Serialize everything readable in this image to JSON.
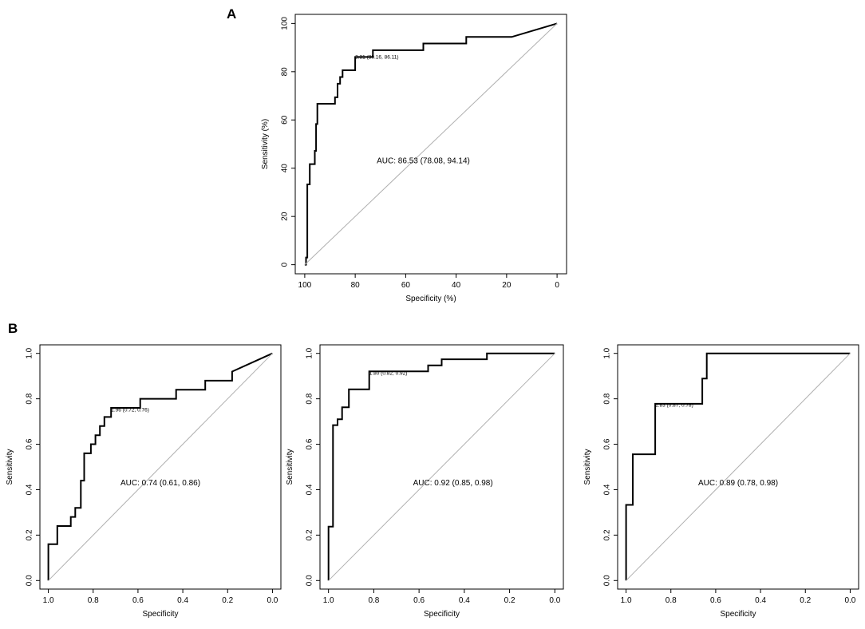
{
  "panels": {
    "a": "A",
    "b": "B"
  },
  "chart_data": [
    {
      "id": "roc-a",
      "type": "line",
      "title": "",
      "xlabel": "Specificity (%)",
      "ylabel": "Sensitivity (%)",
      "xlim": [
        100,
        0
      ],
      "ylim": [
        0,
        100
      ],
      "xticks": [
        100,
        80,
        60,
        40,
        20,
        0
      ],
      "yticks": [
        0,
        20,
        40,
        60,
        80,
        100
      ],
      "xtick_labels": [
        "100",
        "80",
        "60",
        "40",
        "20",
        "0"
      ],
      "ytick_labels": [
        "0",
        "20",
        "40",
        "60",
        "80",
        "100"
      ],
      "series": [
        {
          "name": "ROC",
          "x": [
            100,
            99.5,
            99.5,
            99,
            99,
            98,
            98,
            96,
            96,
            95.5,
            95.5,
            95,
            95,
            88,
            88,
            87,
            87,
            86,
            86,
            85,
            85,
            80,
            80,
            73,
            73,
            53,
            53,
            36,
            36,
            18,
            0
          ],
          "y": [
            0,
            0,
            3,
            3,
            33.3,
            33.3,
            41.7,
            41.7,
            47.2,
            47.2,
            58.3,
            58.3,
            66.7,
            66.7,
            69.4,
            69.4,
            75,
            75,
            77.8,
            77.8,
            80.6,
            80.6,
            86.1,
            86.1,
            88.9,
            88.9,
            91.7,
            91.7,
            94.4,
            94.4,
            100
          ]
        },
        {
          "name": "chance",
          "x": [
            100,
            0
          ],
          "y": [
            0,
            100
          ]
        }
      ],
      "annotations": [
        {
          "text": "AUC: 86.53 (78.08, 94.14)",
          "x": 53,
          "y": 42
        },
        {
          "text": "3.31 (80.16, 86.11)",
          "x": 80,
          "y": 85.4
        }
      ]
    },
    {
      "id": "roc-b1",
      "type": "line",
      "title": "",
      "xlabel": "Specificity",
      "ylabel": "Sensitivity",
      "xlim": [
        1.0,
        0.0
      ],
      "ylim": [
        0,
        1.0
      ],
      "xticks": [
        1.0,
        0.8,
        0.6,
        0.4,
        0.2,
        0.0
      ],
      "yticks": [
        0.0,
        0.2,
        0.4,
        0.6,
        0.8,
        1.0
      ],
      "xtick_labels": [
        "1.0",
        "0.8",
        "0.6",
        "0.4",
        "0.2",
        "0.0"
      ],
      "ytick_labels": [
        "0.0",
        "0.2",
        "0.4",
        "0.6",
        "0.8",
        "1.0"
      ],
      "series": [
        {
          "name": "ROC",
          "x": [
            1.0,
            1.0,
            0.98,
            0.98,
            0.96,
            0.96,
            0.9,
            0.9,
            0.88,
            0.88,
            0.87,
            0.87,
            0.855,
            0.855,
            0.84,
            0.84,
            0.81,
            0.81,
            0.79,
            0.79,
            0.77,
            0.77,
            0.75,
            0.75,
            0.72,
            0.72,
            0.59,
            0.59,
            0.43,
            0.43,
            0.3,
            0.3,
            0.18,
            0.18,
            0.0
          ],
          "y": [
            0,
            0.16,
            0.16,
            0.16,
            0.16,
            0.24,
            0.24,
            0.28,
            0.28,
            0.32,
            0.32,
            0.32,
            0.32,
            0.44,
            0.44,
            0.56,
            0.56,
            0.6,
            0.6,
            0.64,
            0.64,
            0.68,
            0.68,
            0.72,
            0.72,
            0.76,
            0.76,
            0.8,
            0.8,
            0.84,
            0.84,
            0.88,
            0.88,
            0.92,
            1.0
          ]
        },
        {
          "name": "chance",
          "x": [
            1.0,
            0.0
          ],
          "y": [
            0.0,
            1.0
          ]
        }
      ],
      "annotations": [
        {
          "text": "AUC: 0.74 (0.61, 0.86)",
          "x": 0.5,
          "y": 0.42
        },
        {
          "text": "1.96 (0.72, 0.76)",
          "x": 0.72,
          "y": 0.745
        }
      ]
    },
    {
      "id": "roc-b2",
      "type": "line",
      "title": "",
      "xlabel": "Specificity",
      "ylabel": "Sensitivity",
      "xlim": [
        1.0,
        0.0
      ],
      "ylim": [
        0,
        1.0
      ],
      "xticks": [
        1.0,
        0.8,
        0.6,
        0.4,
        0.2,
        0.0
      ],
      "yticks": [
        0.0,
        0.2,
        0.4,
        0.6,
        0.8,
        1.0
      ],
      "xtick_labels": [
        "1.0",
        "0.8",
        "0.6",
        "0.4",
        "0.2",
        "0.0"
      ],
      "ytick_labels": [
        "0.0",
        "0.2",
        "0.4",
        "0.6",
        "0.8",
        "1.0"
      ],
      "series": [
        {
          "name": "ROC",
          "x": [
            1.0,
            1.0,
            0.98,
            0.98,
            0.96,
            0.96,
            0.94,
            0.94,
            0.91,
            0.91,
            0.89,
            0.89,
            0.82,
            0.82,
            0.56,
            0.56,
            0.5,
            0.5,
            0.3,
            0.3,
            0.0
          ],
          "y": [
            0,
            0.237,
            0.237,
            0.684,
            0.684,
            0.71,
            0.71,
            0.763,
            0.763,
            0.842,
            0.842,
            0.842,
            0.842,
            0.921,
            0.921,
            0.947,
            0.947,
            0.974,
            0.974,
            1.0,
            1.0
          ]
        },
        {
          "name": "chance",
          "x": [
            1.0,
            0.0
          ],
          "y": [
            0.0,
            1.0
          ]
        }
      ],
      "annotations": [
        {
          "text": "AUC: 0.92 (0.85, 0.98)",
          "x": 0.45,
          "y": 0.42
        },
        {
          "text": "1.80 (0.82, 0.92)",
          "x": 0.82,
          "y": 0.905
        }
      ]
    },
    {
      "id": "roc-b3",
      "type": "line",
      "title": "",
      "xlabel": "Specificity",
      "ylabel": "Sensitivity",
      "xlim": [
        1.0,
        0.0
      ],
      "ylim": [
        0,
        1.0
      ],
      "xticks": [
        1.0,
        0.8,
        0.6,
        0.4,
        0.2,
        0.0
      ],
      "yticks": [
        0.0,
        0.2,
        0.4,
        0.6,
        0.8,
        1.0
      ],
      "xtick_labels": [
        "1.0",
        "0.8",
        "0.6",
        "0.4",
        "0.2",
        "0.0"
      ],
      "ytick_labels": [
        "0.0",
        "0.2",
        "0.4",
        "0.6",
        "0.8",
        "1.0"
      ],
      "series": [
        {
          "name": "ROC",
          "x": [
            1.0,
            1.0,
            0.99,
            0.99,
            0.97,
            0.97,
            0.87,
            0.87,
            0.66,
            0.66,
            0.64,
            0.64,
            0.0
          ],
          "y": [
            0,
            0.333,
            0.333,
            0.333,
            0.333,
            0.556,
            0.556,
            0.778,
            0.778,
            0.889,
            0.889,
            1.0,
            1.0
          ]
        },
        {
          "name": "chance",
          "x": [
            1.0,
            0.0
          ],
          "y": [
            0.0,
            1.0
          ]
        }
      ],
      "annotations": [
        {
          "text": "AUC: 0.89 (0.78, 0.98)",
          "x": 0.5,
          "y": 0.42
        },
        {
          "text": "1.83 (0.87, 0.78)",
          "x": 0.87,
          "y": 0.765
        }
      ]
    }
  ]
}
